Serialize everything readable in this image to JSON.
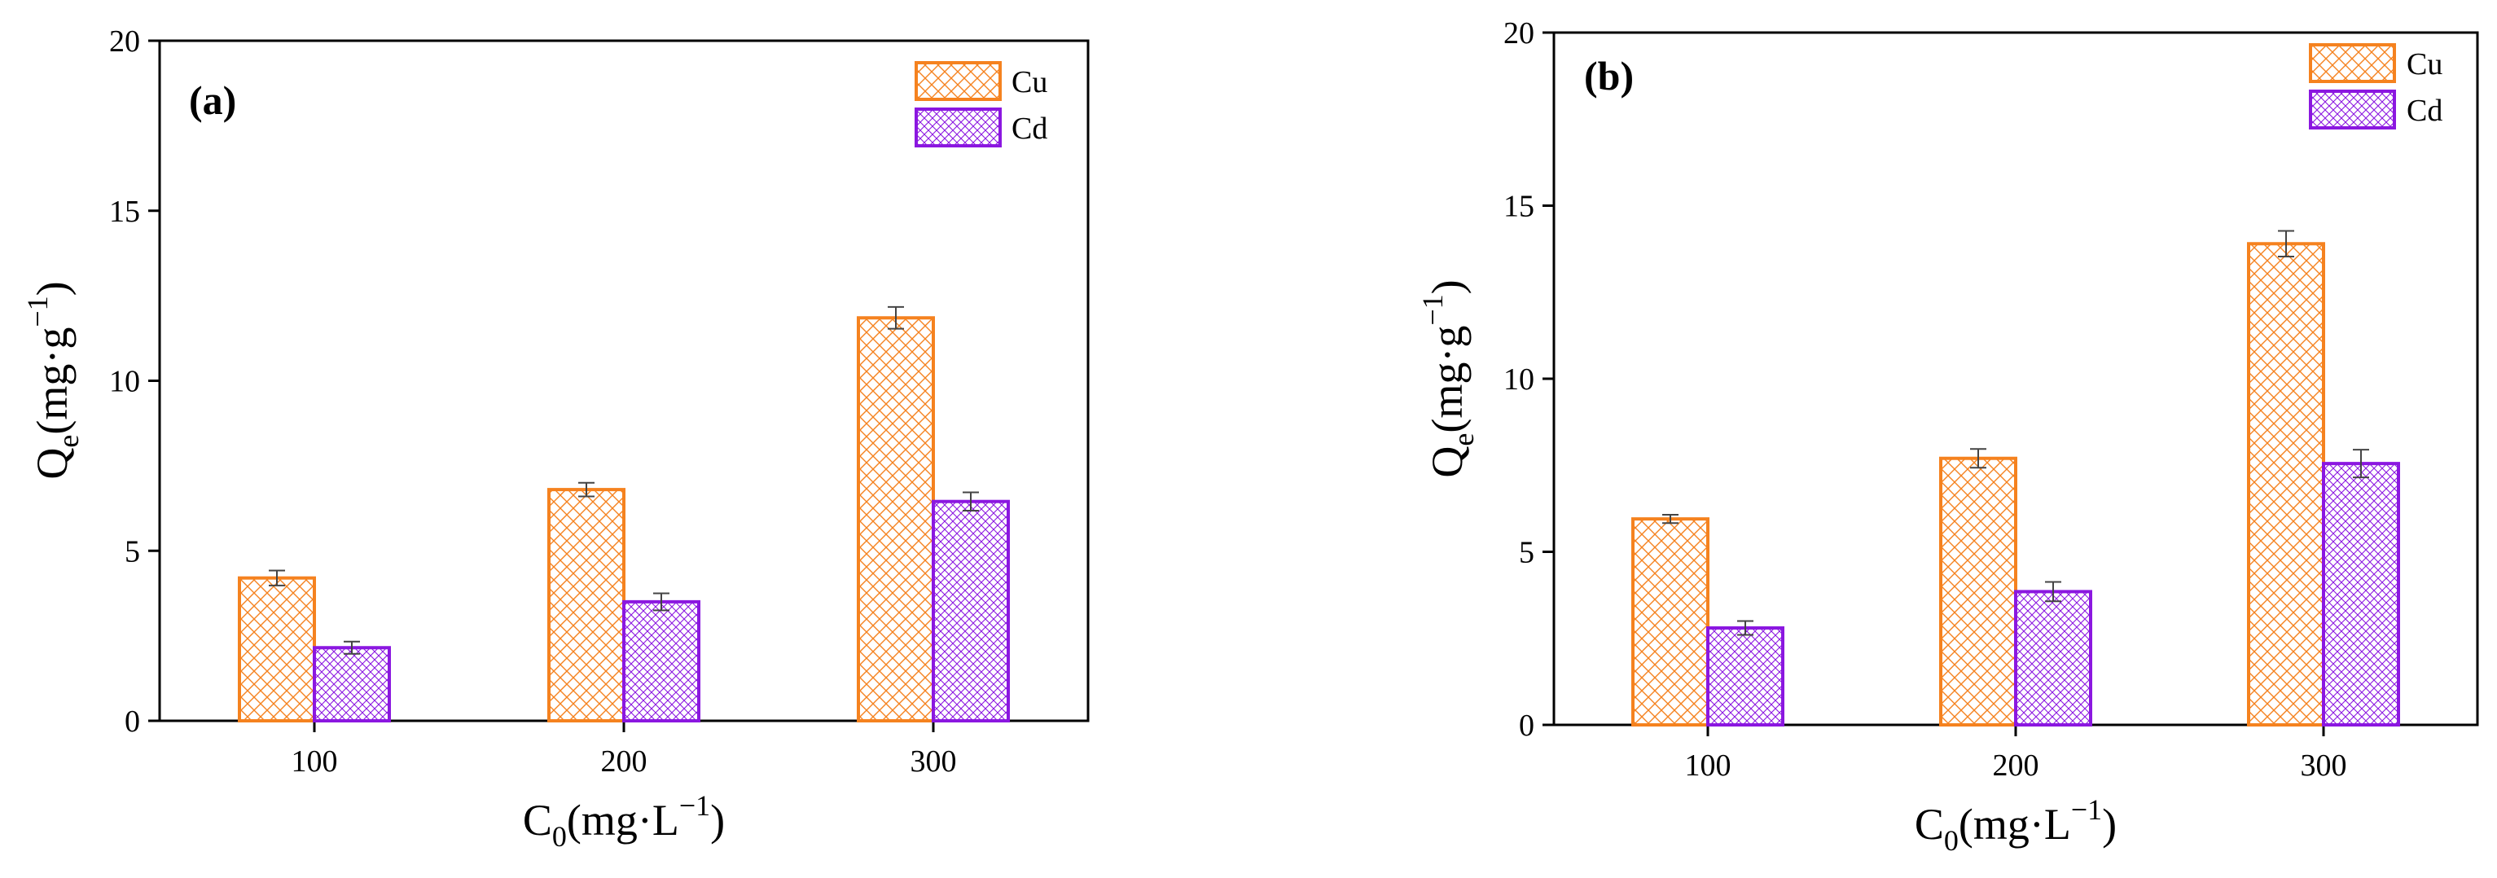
{
  "chart_data": [
    {
      "type": "bar",
      "panel_label": "(a)",
      "categories": [
        "100",
        "200",
        "300"
      ],
      "series": [
        {
          "name": "Cu",
          "values": [
            4.2,
            6.8,
            11.85
          ],
          "errors": [
            0.22,
            0.2,
            0.32
          ]
        },
        {
          "name": "Cd",
          "values": [
            2.15,
            3.5,
            6.45
          ],
          "errors": [
            0.18,
            0.25,
            0.27
          ]
        }
      ],
      "xlabel": {
        "main": "C",
        "sub": "0",
        "rest": "(mg·L",
        "sup": "−1",
        "close": ")"
      },
      "ylabel": {
        "main": "Q",
        "sub": "e",
        "rest": "(mg·g",
        "sup": "−1",
        "close": ")"
      },
      "ylim": [
        0,
        20
      ],
      "yticks": [
        "0",
        "5",
        "10",
        "15",
        "20"
      ],
      "legend": "top-right"
    },
    {
      "type": "bar",
      "panel_label": "(b)",
      "categories": [
        "100",
        "200",
        "300"
      ],
      "series": [
        {
          "name": "Cu",
          "values": [
            5.95,
            7.7,
            13.9
          ],
          "errors": [
            0.12,
            0.27,
            0.37
          ]
        },
        {
          "name": "Cd",
          "values": [
            2.8,
            3.85,
            7.55
          ],
          "errors": [
            0.2,
            0.28,
            0.4
          ]
        }
      ],
      "xlabel": {
        "main": "C",
        "sub": "0",
        "rest": "(mg·L",
        "sup": "−1",
        "close": ")"
      },
      "ylabel": {
        "main": "Q",
        "sub": "e",
        "rest": "(mg·g",
        "sup": "−1",
        "close": ")"
      },
      "ylim": [
        0,
        20
      ],
      "yticks": [
        "0",
        "5",
        "10",
        "15",
        "20"
      ],
      "legend": "top-right"
    }
  ],
  "colors": {
    "Cu": "#f5821f",
    "Cd": "#8b17e0",
    "axis": "#000000",
    "error": "#444444"
  }
}
